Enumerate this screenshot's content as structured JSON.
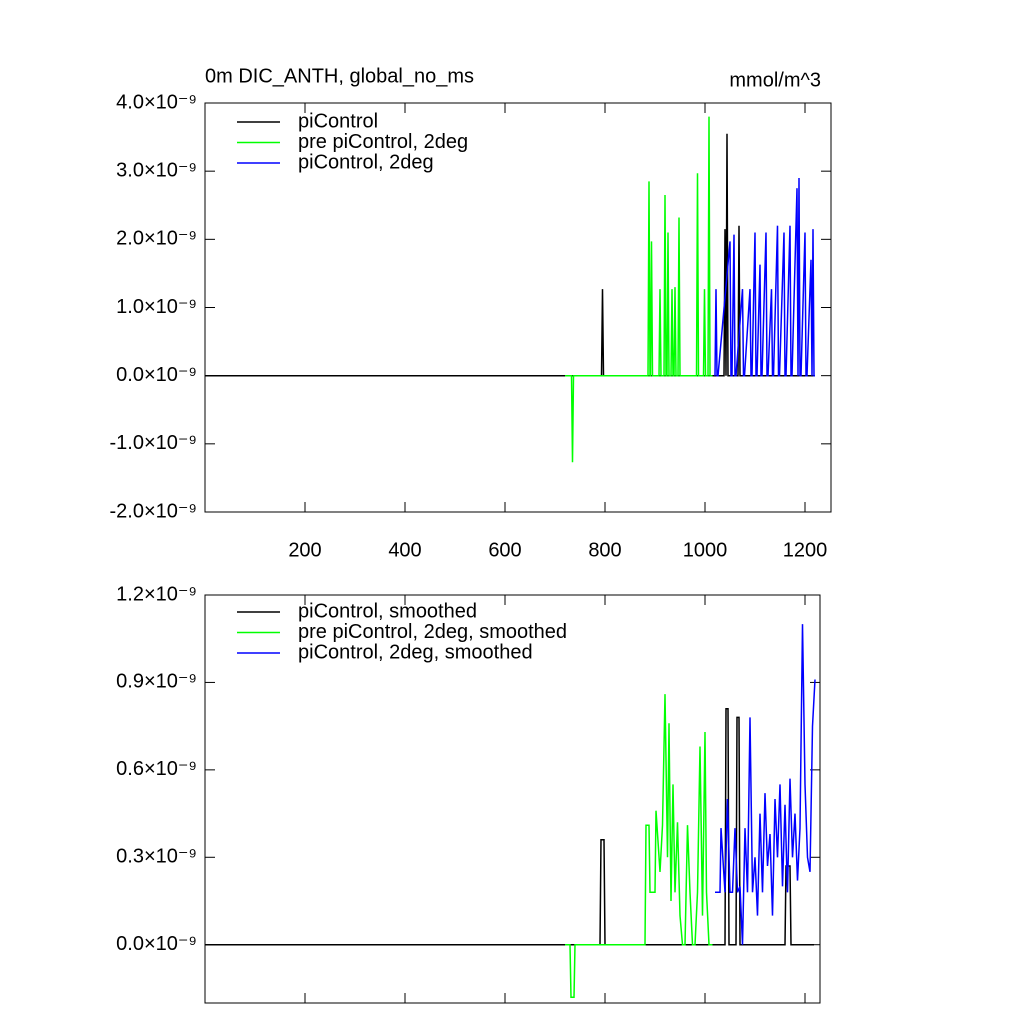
{
  "chart_data": [
    {
      "type": "line",
      "title": "0m DIC_ANTH, global_no_ms",
      "right_title": "mmol/m^3",
      "xlim": [
        0,
        1252
      ],
      "ylim": [
        -2e-09,
        4e-09
      ],
      "xtick_labels": true,
      "xticks": [
        200,
        400,
        600,
        800,
        1000,
        1200
      ],
      "yticks": [
        {
          "value": 4e-09,
          "label": "4.0×10⁻⁹"
        },
        {
          "value": 3e-09,
          "label": "3.0×10⁻⁹"
        },
        {
          "value": 2e-09,
          "label": "2.0×10⁻⁹"
        },
        {
          "value": 1e-09,
          "label": "1.0×10⁻⁹"
        },
        {
          "value": 0,
          "label": "0.0×10⁻⁹"
        },
        {
          "value": -1e-09,
          "label": "-1.0×10⁻⁹"
        },
        {
          "value": -2e-09,
          "label": "-2.0×10⁻⁹"
        }
      ],
      "series": [
        {
          "name": "piControl",
          "color": "#000000",
          "x": [
            0,
            793,
            795,
            797,
            1038,
            1040,
            1042,
            1044,
            1046,
            1066,
            1068,
            1070,
            1220
          ],
          "values": [
            0,
            0,
            1.27e-09,
            0,
            0,
            2.15e-09,
            0,
            3.55e-09,
            0,
            0,
            2.2e-09,
            0,
            0
          ]
        },
        {
          "name": "pre piControl, 2deg",
          "color": "#00ff00",
          "x": [
            720,
            733,
            735,
            737,
            886,
            888,
            890,
            891,
            893,
            895,
            908,
            910,
            912,
            918,
            920,
            922,
            924,
            926,
            928,
            932,
            934,
            936,
            938,
            940,
            942,
            946,
            948,
            950,
            983,
            985,
            987,
            997,
            999,
            1001,
            1006,
            1008,
            1010,
            1015
          ],
          "values": [
            0,
            0,
            -1.27e-09,
            0,
            0,
            2.85e-09,
            0,
            0,
            1.97e-09,
            0,
            0,
            1.27e-09,
            0,
            0,
            2.65e-09,
            0,
            0,
            2.1e-09,
            0,
            0,
            1.27e-09,
            0,
            0,
            1.3e-09,
            0,
            0,
            2.32e-09,
            0,
            0,
            2.97e-09,
            0,
            0,
            1.27e-09,
            0,
            0,
            3.8e-09,
            0,
            0
          ]
        },
        {
          "name": "piControl, 2deg",
          "color": "#0000ff",
          "x": [
            1020,
            1022,
            1024,
            1026,
            1050,
            1052,
            1054,
            1058,
            1060,
            1062,
            1075,
            1077,
            1079,
            1090,
            1092,
            1094,
            1100,
            1102,
            1104,
            1110,
            1112,
            1114,
            1122,
            1124,
            1126,
            1133,
            1135,
            1137,
            1145,
            1147,
            1149,
            1158,
            1160,
            1162,
            1170,
            1172,
            1174,
            1184,
            1186,
            1188,
            1190,
            1192,
            1200,
            1202,
            1204,
            1212,
            1214,
            1216,
            1218,
            1220
          ],
          "values": [
            0,
            1.27e-09,
            0,
            0,
            1.97e-09,
            0,
            0,
            2.07e-09,
            0,
            0,
            1.27e-09,
            0,
            0,
            1.27e-09,
            0,
            0,
            2.1e-09,
            0,
            0,
            1.63e-09,
            0,
            0,
            2.1e-09,
            0,
            0,
            1.27e-09,
            0,
            0,
            2.2e-09,
            0,
            0,
            2.1e-09,
            0,
            0,
            2.2e-09,
            0,
            0,
            2.75e-09,
            0,
            2.9e-09,
            0,
            0,
            2.1e-09,
            0,
            0,
            1.7e-09,
            0,
            2.15e-09,
            0,
            0
          ]
        }
      ]
    },
    {
      "type": "line",
      "xlim": [
        0,
        1230
      ],
      "ylim": [
        -2e-10,
        1.2e-09
      ],
      "xtick_labels": false,
      "xticks": [
        200,
        400,
        600,
        800,
        1000,
        1200
      ],
      "yticks": [
        {
          "value": 1.2e-09,
          "label": "1.2×10⁻⁹"
        },
        {
          "value": 9e-10,
          "label": "0.9×10⁻⁹"
        },
        {
          "value": 6e-10,
          "label": "0.6×10⁻⁹"
        },
        {
          "value": 3e-10,
          "label": "0.3×10⁻⁹"
        },
        {
          "value": 0,
          "label": "0.0×10⁻⁹"
        }
      ],
      "series": [
        {
          "name": "piControl, smoothed",
          "color": "#000000",
          "x": [
            0,
            790,
            792,
            798,
            800,
            1040,
            1042,
            1046,
            1048,
            1062,
            1064,
            1068,
            1070,
            1160,
            1162,
            1170,
            1172,
            1218
          ],
          "values": [
            0,
            0,
            3.6e-10,
            3.6e-10,
            0,
            0,
            8.1e-10,
            8.1e-10,
            0,
            0,
            7.8e-10,
            7.8e-10,
            0,
            0,
            2.7e-10,
            2.7e-10,
            0,
            0
          ]
        },
        {
          "name": "pre piControl, 2deg, smoothed",
          "color": "#00ff00",
          "x": [
            720,
            730,
            732,
            738,
            740,
            880,
            882,
            888,
            890,
            900,
            902,
            910,
            915,
            920,
            925,
            928,
            932,
            936,
            940,
            945,
            950,
            955,
            960,
            965,
            970,
            975,
            980,
            985,
            990,
            995,
            1000,
            1003,
            1008,
            1012,
            1015
          ],
          "values": [
            0,
            0,
            -1.8e-10,
            -1.8e-10,
            0,
            0,
            4.1e-10,
            4.1e-10,
            1.8e-10,
            1.8e-10,
            4.6e-10,
            2.5e-10,
            4.1e-10,
            8.6e-10,
            3e-10,
            7.6e-10,
            1.5e-10,
            5.5e-10,
            1.8e-10,
            4.2e-10,
            1e-10,
            0,
            0,
            4.1e-10,
            1.8e-10,
            0,
            0,
            1.8e-10,
            6.8e-10,
            1e-10,
            7.3e-10,
            1.8e-10,
            0,
            0,
            0
          ]
        },
        {
          "name": "piControl, 2deg, smoothed",
          "color": "#0000ff",
          "x": [
            1020,
            1022,
            1030,
            1032,
            1040,
            1045,
            1050,
            1055,
            1060,
            1065,
            1070,
            1075,
            1080,
            1085,
            1090,
            1095,
            1100,
            1105,
            1110,
            1115,
            1120,
            1125,
            1130,
            1135,
            1140,
            1145,
            1150,
            1155,
            1160,
            1165,
            1170,
            1175,
            1180,
            1185,
            1190,
            1195,
            1200,
            1205,
            1210,
            1215,
            1220
          ],
          "values": [
            1.8e-10,
            1.8e-10,
            1.8e-10,
            4e-10,
            1.8e-10,
            5e-10,
            1.8e-10,
            1.8e-10,
            4e-10,
            1.8e-10,
            2e-10,
            0,
            4e-10,
            1.8e-10,
            7.8e-10,
            1.8e-10,
            3e-10,
            1e-10,
            4.5e-10,
            1.8e-10,
            5.2e-10,
            2.7e-10,
            3.8e-10,
            1e-10,
            5e-10,
            3e-10,
            5.5e-10,
            2e-10,
            4.8e-10,
            1.8e-10,
            5.7e-10,
            3e-10,
            4.5e-10,
            2.2e-10,
            4e-10,
            1.1e-09,
            5.5e-10,
            3e-10,
            2.5e-10,
            7.5e-10,
            9.1e-10
          ]
        }
      ]
    }
  ]
}
